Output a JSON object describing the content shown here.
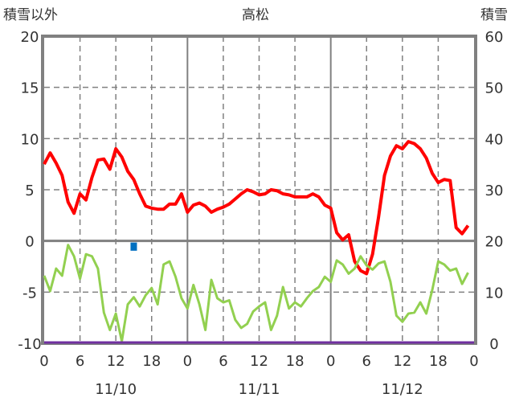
{
  "chart_data": {
    "type": "line",
    "title": "高松",
    "ylabel_left": "積雪以外",
    "ylabel_right": "積雪",
    "ylim_left": [
      -10,
      20
    ],
    "ylim_right": [
      0,
      60
    ],
    "yticks_left": [
      "20",
      "15",
      "10",
      "5",
      "0",
      "-5",
      "-10"
    ],
    "yticks_right": [
      "60",
      "50",
      "40",
      "30",
      "20",
      "10",
      "0"
    ],
    "xticks": [
      "0",
      "6",
      "12",
      "18",
      "0",
      "6",
      "12",
      "18",
      "0",
      "6",
      "12",
      "18",
      "0"
    ],
    "date_labels": [
      "11/10",
      "11/11",
      "11/12"
    ],
    "x_hours_range": [
      0,
      72
    ],
    "grid": true,
    "colors": {
      "red": "#ff0000",
      "green": "#92d050",
      "blue": "#0070c0",
      "purple": "#7030a0",
      "axis": "#808080"
    },
    "series": [
      {
        "name": "red-series",
        "axis": "left",
        "color": "#ff0000",
        "values": [
          7.5,
          8.6,
          7.6,
          6.4,
          3.8,
          2.7,
          4.6,
          4.0,
          6.2,
          7.9,
          8.0,
          7.0,
          9.0,
          8.2,
          6.8,
          6.0,
          4.6,
          3.4,
          3.2,
          3.1,
          3.1,
          3.6,
          3.6,
          4.6,
          2.8,
          3.5,
          3.7,
          3.4,
          2.8,
          3.1,
          3.3,
          3.6,
          4.1,
          4.6,
          5.0,
          4.8,
          4.5,
          4.6,
          5.0,
          4.9,
          4.6,
          4.5,
          4.3,
          4.3,
          4.3,
          4.6,
          4.3,
          3.5,
          3.2,
          0.8,
          0.1,
          0.6,
          -2.0,
          -2.9,
          -3.2,
          -1.3,
          2.3,
          6.4,
          8.3,
          9.3,
          9.0,
          9.7,
          9.5,
          9.0,
          8.1,
          6.6,
          5.7,
          6.0,
          5.9,
          1.3,
          0.7,
          1.5
        ]
      },
      {
        "name": "green-series",
        "axis": "left",
        "color": "#92d050",
        "values": [
          -3.4,
          -4.9,
          -2.7,
          -3.4,
          -0.4,
          -1.5,
          -3.7,
          -1.3,
          -1.5,
          -2.7,
          -7.0,
          -8.7,
          -7.1,
          -9.8,
          -6.2,
          -5.5,
          -6.4,
          -5.3,
          -4.6,
          -6.2,
          -2.3,
          -2.0,
          -3.5,
          -5.6,
          -6.6,
          -4.3,
          -6.2,
          -8.7,
          -3.8,
          -5.6,
          -6.0,
          -5.8,
          -7.7,
          -8.5,
          -8.1,
          -6.9,
          -6.4,
          -6.0,
          -8.7,
          -7.3,
          -4.5,
          -6.6,
          -6.0,
          -6.4,
          -5.6,
          -4.9,
          -4.5,
          -3.5,
          -4.0,
          -1.9,
          -2.3,
          -3.2,
          -2.7,
          -1.5,
          -2.4,
          -2.8,
          -2.2,
          -2.0,
          -4.0,
          -7.3,
          -7.9,
          -7.1,
          -7.0,
          -6.0,
          -7.1,
          -4.8,
          -2.0,
          -2.3,
          -2.9,
          -2.7,
          -4.2,
          -3.1
        ]
      },
      {
        "name": "snow-depth",
        "axis": "right",
        "color": "#7030a0",
        "values": [
          0,
          0
        ]
      }
    ],
    "bars": [
      {
        "name": "blue-bar",
        "hour": 15,
        "value": -0.8,
        "color": "#0070c0"
      }
    ]
  }
}
